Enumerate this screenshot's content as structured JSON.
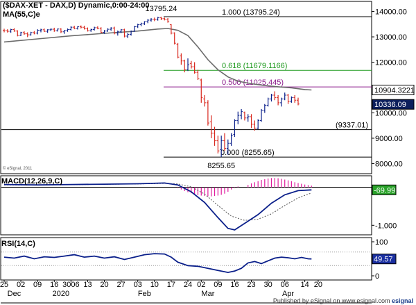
{
  "chart_data": {
    "type": "candlestick",
    "title": "($DAX-XET - DAX,D) Dynamic,0:00-24:00",
    "ma_label": "MA(55,C)e",
    "copyright": "© eSignal, 2011",
    "price_axis": {
      "min": 7600,
      "max": 14400,
      "ticks": [
        {
          "value": 14000,
          "label": "14000.00"
        },
        {
          "value": 13000,
          "label": "13000.00"
        },
        {
          "value": 12000,
          "label": "12000.00"
        },
        {
          "value": 11000,
          "label": "11000.00"
        },
        {
          "value": 10000,
          "label": "10000.00"
        },
        {
          "value": 9000,
          "label": "9000.00"
        },
        {
          "value": 8000,
          "label": "8000.00"
        }
      ]
    },
    "x_labels": [
      "25",
      "02",
      "09",
      "16",
      "3006",
      "13",
      "20",
      "27",
      "03",
      "10",
      "17",
      "24",
      "02",
      "09",
      "16",
      "23",
      "30",
      "06",
      "14",
      "20"
    ],
    "x_label_index": [
      0,
      5,
      10,
      15,
      20,
      25,
      30,
      35,
      40,
      45,
      50,
      55,
      59,
      64,
      69,
      74,
      79,
      84,
      90,
      94
    ],
    "month_labels": [
      {
        "label": "Dec",
        "index": 3
      },
      {
        "label": "2020",
        "index": 17
      },
      {
        "label": "Feb",
        "index": 42
      },
      {
        "label": "Mar",
        "index": 61
      },
      {
        "label": "Apr",
        "index": 85
      }
    ],
    "candles": [
      {
        "o": 13260,
        "h": 13320,
        "l": 13180,
        "c": 13240
      },
      {
        "o": 13240,
        "h": 13300,
        "l": 13170,
        "c": 13220
      },
      {
        "o": 13220,
        "h": 13320,
        "l": 13160,
        "c": 13290
      },
      {
        "o": 13290,
        "h": 13340,
        "l": 13200,
        "c": 13230
      },
      {
        "o": 13230,
        "h": 13260,
        "l": 13020,
        "c": 13060
      },
      {
        "o": 13060,
        "h": 13200,
        "l": 13030,
        "c": 13170
      },
      {
        "o": 13170,
        "h": 13220,
        "l": 13080,
        "c": 13120
      },
      {
        "o": 13120,
        "h": 13180,
        "l": 12990,
        "c": 13080
      },
      {
        "o": 13080,
        "h": 13200,
        "l": 13050,
        "c": 13170
      },
      {
        "o": 13170,
        "h": 13230,
        "l": 13100,
        "c": 13150
      },
      {
        "o": 13150,
        "h": 13300,
        "l": 13100,
        "c": 13260
      },
      {
        "o": 13260,
        "h": 13320,
        "l": 13180,
        "c": 13280
      },
      {
        "o": 13280,
        "h": 13330,
        "l": 13190,
        "c": 13220
      },
      {
        "o": 13220,
        "h": 13300,
        "l": 13160,
        "c": 13280
      },
      {
        "o": 13280,
        "h": 13340,
        "l": 13230,
        "c": 13300
      },
      {
        "o": 13300,
        "h": 13360,
        "l": 13200,
        "c": 13240
      },
      {
        "o": 13240,
        "h": 13330,
        "l": 13210,
        "c": 13310
      },
      {
        "o": 13310,
        "h": 13340,
        "l": 13150,
        "c": 13200
      },
      {
        "o": 13200,
        "h": 13270,
        "l": 13120,
        "c": 13250
      },
      {
        "o": 13250,
        "h": 13330,
        "l": 13200,
        "c": 13290
      },
      {
        "o": 13290,
        "h": 13420,
        "l": 13250,
        "c": 13380
      },
      {
        "o": 13380,
        "h": 13440,
        "l": 13300,
        "c": 13340
      },
      {
        "o": 13340,
        "h": 13420,
        "l": 13290,
        "c": 13400
      },
      {
        "o": 13400,
        "h": 13450,
        "l": 13330,
        "c": 13380
      },
      {
        "o": 13380,
        "h": 13440,
        "l": 13290,
        "c": 13320
      },
      {
        "o": 13320,
        "h": 13370,
        "l": 13210,
        "c": 13240
      },
      {
        "o": 13240,
        "h": 13320,
        "l": 13200,
        "c": 13290
      },
      {
        "o": 13290,
        "h": 13400,
        "l": 13250,
        "c": 13360
      },
      {
        "o": 13360,
        "h": 13420,
        "l": 13300,
        "c": 13330
      },
      {
        "o": 13330,
        "h": 13380,
        "l": 13150,
        "c": 13180
      },
      {
        "o": 13180,
        "h": 13270,
        "l": 13120,
        "c": 13230
      },
      {
        "o": 13230,
        "h": 13340,
        "l": 13200,
        "c": 13300
      },
      {
        "o": 13300,
        "h": 13380,
        "l": 13240,
        "c": 13350
      },
      {
        "o": 13350,
        "h": 13400,
        "l": 13100,
        "c": 13150
      },
      {
        "o": 13150,
        "h": 13250,
        "l": 13050,
        "c": 13200
      },
      {
        "o": 13200,
        "h": 13310,
        "l": 13150,
        "c": 13280
      },
      {
        "o": 13280,
        "h": 13320,
        "l": 12980,
        "c": 13030
      },
      {
        "o": 13030,
        "h": 13150,
        "l": 12950,
        "c": 13100
      },
      {
        "o": 13100,
        "h": 13250,
        "l": 13050,
        "c": 13220
      },
      {
        "o": 13220,
        "h": 13430,
        "l": 13200,
        "c": 13400
      },
      {
        "o": 13400,
        "h": 13520,
        "l": 13350,
        "c": 13480
      },
      {
        "o": 13480,
        "h": 13560,
        "l": 13420,
        "c": 13520
      },
      {
        "o": 13520,
        "h": 13620,
        "l": 13470,
        "c": 13600
      },
      {
        "o": 13600,
        "h": 13700,
        "l": 13540,
        "c": 13660
      },
      {
        "o": 13660,
        "h": 13740,
        "l": 13600,
        "c": 13700
      },
      {
        "o": 13700,
        "h": 13760,
        "l": 13620,
        "c": 13680
      },
      {
        "o": 13680,
        "h": 13790,
        "l": 13640,
        "c": 13760
      },
      {
        "o": 13760,
        "h": 13795,
        "l": 13660,
        "c": 13720
      },
      {
        "o": 13720,
        "h": 13760,
        "l": 13650,
        "c": 13700
      },
      {
        "o": 13700,
        "h": 13740,
        "l": 13560,
        "c": 13600
      },
      {
        "o": 13480,
        "h": 13500,
        "l": 13100,
        "c": 13150
      },
      {
        "o": 13150,
        "h": 13180,
        "l": 12700,
        "c": 12750
      },
      {
        "o": 12700,
        "h": 12760,
        "l": 12150,
        "c": 12200
      },
      {
        "o": 12250,
        "h": 12350,
        "l": 11900,
        "c": 12050
      },
      {
        "o": 12050,
        "h": 12100,
        "l": 11600,
        "c": 11700
      },
      {
        "o": 11700,
        "h": 12150,
        "l": 11650,
        "c": 11900
      },
      {
        "o": 11950,
        "h": 12050,
        "l": 11750,
        "c": 11820
      },
      {
        "o": 11820,
        "h": 12000,
        "l": 11550,
        "c": 11600
      },
      {
        "o": 11600,
        "h": 11700,
        "l": 11300,
        "c": 11350
      },
      {
        "o": 11300,
        "h": 11350,
        "l": 10400,
        "c": 10600
      },
      {
        "o": 10550,
        "h": 10700,
        "l": 10250,
        "c": 10400
      },
      {
        "o": 10400,
        "h": 10500,
        "l": 9500,
        "c": 9600
      },
      {
        "o": 9650,
        "h": 9900,
        "l": 9000,
        "c": 9200
      },
      {
        "o": 9200,
        "h": 9450,
        "l": 8700,
        "c": 8900
      },
      {
        "o": 8900,
        "h": 9100,
        "l": 8400,
        "c": 8500
      },
      {
        "o": 8550,
        "h": 9100,
        "l": 8256,
        "c": 8900
      },
      {
        "o": 8900,
        "h": 9200,
        "l": 8500,
        "c": 8600
      },
      {
        "o": 8600,
        "h": 8950,
        "l": 8350,
        "c": 8800
      },
      {
        "o": 8800,
        "h": 9200,
        "l": 8700,
        "c": 9100
      },
      {
        "o": 9150,
        "h": 9750,
        "l": 9050,
        "c": 9700
      },
      {
        "o": 9700,
        "h": 10050,
        "l": 9550,
        "c": 9900
      },
      {
        "o": 9900,
        "h": 10150,
        "l": 9750,
        "c": 10050
      },
      {
        "o": 10000,
        "h": 10050,
        "l": 9700,
        "c": 9800
      },
      {
        "o": 9800,
        "h": 9950,
        "l": 9650,
        "c": 9850
      },
      {
        "o": 9850,
        "h": 9950,
        "l": 9400,
        "c": 9550
      },
      {
        "o": 9550,
        "h": 9700,
        "l": 9300,
        "c": 9400
      },
      {
        "o": 9400,
        "h": 9750,
        "l": 9350,
        "c": 9700
      },
      {
        "o": 9700,
        "h": 10150,
        "l": 9650,
        "c": 10100
      },
      {
        "o": 10100,
        "h": 10350,
        "l": 10000,
        "c": 10300
      },
      {
        "o": 10300,
        "h": 10600,
        "l": 10250,
        "c": 10550
      },
      {
        "o": 10550,
        "h": 10750,
        "l": 10450,
        "c": 10700
      },
      {
        "o": 10700,
        "h": 10850,
        "l": 10500,
        "c": 10600
      },
      {
        "o": 10600,
        "h": 10700,
        "l": 10300,
        "c": 10400
      },
      {
        "o": 10400,
        "h": 10600,
        "l": 10250,
        "c": 10550
      },
      {
        "o": 10550,
        "h": 10800,
        "l": 10500,
        "c": 10700
      },
      {
        "o": 10700,
        "h": 10750,
        "l": 10350,
        "c": 10450
      },
      {
        "o": 10450,
        "h": 10650,
        "l": 10400,
        "c": 10600
      },
      {
        "o": 10600,
        "h": 10700,
        "l": 10400,
        "c": 10500
      },
      {
        "o": 10500,
        "h": 10600,
        "l": 10300,
        "c": 10350
      }
    ],
    "ma": {
      "name": "MA(55,C)e",
      "last_value": "10904.3221",
      "points": [
        {
          "i": 0,
          "v": 12800
        },
        {
          "i": 10,
          "v": 12920
        },
        {
          "i": 20,
          "v": 13040
        },
        {
          "i": 30,
          "v": 13140
        },
        {
          "i": 40,
          "v": 13230
        },
        {
          "i": 46,
          "v": 13310
        },
        {
          "i": 49,
          "v": 13330
        },
        {
          "i": 52,
          "v": 13260
        },
        {
          "i": 55,
          "v": 13050
        },
        {
          "i": 58,
          "v": 12600
        },
        {
          "i": 61,
          "v": 12100
        },
        {
          "i": 64,
          "v": 11700
        },
        {
          "i": 67,
          "v": 11420
        },
        {
          "i": 70,
          "v": 11250
        },
        {
          "i": 74,
          "v": 11150
        },
        {
          "i": 78,
          "v": 11080
        },
        {
          "i": 82,
          "v": 11030
        },
        {
          "i": 86,
          "v": 10990
        },
        {
          "i": 90,
          "v": 10920
        },
        {
          "i": 92,
          "v": 10904
        }
      ]
    },
    "fib_levels": [
      {
        "label": "1.000 (13795.24)",
        "value": 13795.24,
        "color": "#000000"
      },
      {
        "label": "0.618 (11679.1166)",
        "value": 11679.1166,
        "color": "#1e9a1e"
      },
      {
        "label": "0.500 (11025.445)",
        "value": 11025.445,
        "color": "#8b1a8b"
      },
      {
        "label": "0.000 (8255.65)",
        "value": 8255.65,
        "color": "#000000"
      }
    ],
    "support_level": {
      "label": "(9337.01)",
      "value": 9337.01
    },
    "annotations": [
      {
        "text": "13795.24",
        "value": 13795.24,
        "index": 47
      },
      {
        "text": "8255.65",
        "value": 8255.65,
        "index": 65
      }
    ],
    "price_tags": [
      {
        "text": "10904.3221",
        "value": 10904.3221,
        "bg": "#ffffff",
        "fg": "#000000"
      },
      {
        "text": "10336.09",
        "value": 10336.09,
        "bg": "#0c1f5c",
        "fg": "#ffffff"
      }
    ],
    "macd": {
      "label": "MACD(12,26,9,C)",
      "last_value": "-69.99",
      "axis_ticks": [
        {
          "value": -1000,
          "label": "-1,000"
        }
      ],
      "min": -1250,
      "max": 300,
      "macd_line": [
        {
          "i": 0,
          "v": 70
        },
        {
          "i": 10,
          "v": 60
        },
        {
          "i": 20,
          "v": 70
        },
        {
          "i": 30,
          "v": 80
        },
        {
          "i": 40,
          "v": 90
        },
        {
          "i": 48,
          "v": 110
        },
        {
          "i": 52,
          "v": 60
        },
        {
          "i": 56,
          "v": -120
        },
        {
          "i": 60,
          "v": -400
        },
        {
          "i": 64,
          "v": -800
        },
        {
          "i": 67,
          "v": -1080
        },
        {
          "i": 69,
          "v": -1120
        },
        {
          "i": 72,
          "v": -950
        },
        {
          "i": 76,
          "v": -720
        },
        {
          "i": 80,
          "v": -420
        },
        {
          "i": 84,
          "v": -200
        },
        {
          "i": 88,
          "v": -90
        },
        {
          "i": 92,
          "v": -70
        }
      ],
      "signal_line": [
        {
          "i": 0,
          "v": 60
        },
        {
          "i": 10,
          "v": 60
        },
        {
          "i": 20,
          "v": 65
        },
        {
          "i": 30,
          "v": 75
        },
        {
          "i": 40,
          "v": 85
        },
        {
          "i": 48,
          "v": 100
        },
        {
          "i": 52,
          "v": 85
        },
        {
          "i": 56,
          "v": 10
        },
        {
          "i": 60,
          "v": -180
        },
        {
          "i": 64,
          "v": -480
        },
        {
          "i": 68,
          "v": -760
        },
        {
          "i": 72,
          "v": -870
        },
        {
          "i": 76,
          "v": -840
        },
        {
          "i": 80,
          "v": -700
        },
        {
          "i": 84,
          "v": -480
        },
        {
          "i": 88,
          "v": -280
        },
        {
          "i": 92,
          "v": -150
        }
      ],
      "histogram": [
        {
          "i": 52,
          "v": -20
        },
        {
          "i": 53,
          "v": -60
        },
        {
          "i": 54,
          "v": -100
        },
        {
          "i": 55,
          "v": -130
        },
        {
          "i": 56,
          "v": -160
        },
        {
          "i": 57,
          "v": -190
        },
        {
          "i": 58,
          "v": -210
        },
        {
          "i": 59,
          "v": -220
        },
        {
          "i": 60,
          "v": -230
        },
        {
          "i": 61,
          "v": -240
        },
        {
          "i": 62,
          "v": -240
        },
        {
          "i": 63,
          "v": -230
        },
        {
          "i": 64,
          "v": -220
        },
        {
          "i": 65,
          "v": -200
        },
        {
          "i": 66,
          "v": -170
        },
        {
          "i": 67,
          "v": -120
        },
        {
          "i": 68,
          "v": -60
        },
        {
          "i": 69,
          "v": -20
        },
        {
          "i": 70,
          "v": 20
        },
        {
          "i": 73,
          "v": 60
        },
        {
          "i": 74,
          "v": 100
        },
        {
          "i": 75,
          "v": 130
        },
        {
          "i": 76,
          "v": 160
        },
        {
          "i": 77,
          "v": 190
        },
        {
          "i": 78,
          "v": 210
        },
        {
          "i": 79,
          "v": 230
        },
        {
          "i": 80,
          "v": 240
        },
        {
          "i": 81,
          "v": 240
        },
        {
          "i": 82,
          "v": 235
        },
        {
          "i": 83,
          "v": 220
        },
        {
          "i": 84,
          "v": 200
        },
        {
          "i": 85,
          "v": 180
        },
        {
          "i": 86,
          "v": 160
        },
        {
          "i": 87,
          "v": 130
        },
        {
          "i": 88,
          "v": 110
        },
        {
          "i": 89,
          "v": 90
        },
        {
          "i": 90,
          "v": 70
        },
        {
          "i": 91,
          "v": 55
        },
        {
          "i": 92,
          "v": 40
        }
      ]
    },
    "rsi": {
      "label": "RSI(14,C)",
      "last_value": "49.57",
      "min": 0,
      "max": 100,
      "axis_ticks": [
        {
          "value": 100,
          "label": "100"
        },
        {
          "value": 0,
          "label": "0"
        }
      ],
      "reference_lines": [
        70,
        30
      ],
      "points": [
        {
          "i": 0,
          "v": 55
        },
        {
          "i": 3,
          "v": 52
        },
        {
          "i": 6,
          "v": 58
        },
        {
          "i": 9,
          "v": 50
        },
        {
          "i": 12,
          "v": 56
        },
        {
          "i": 15,
          "v": 54
        },
        {
          "i": 18,
          "v": 58
        },
        {
          "i": 21,
          "v": 62
        },
        {
          "i": 24,
          "v": 55
        },
        {
          "i": 27,
          "v": 58
        },
        {
          "i": 30,
          "v": 52
        },
        {
          "i": 33,
          "v": 56
        },
        {
          "i": 36,
          "v": 48
        },
        {
          "i": 39,
          "v": 55
        },
        {
          "i": 42,
          "v": 62
        },
        {
          "i": 45,
          "v": 65
        },
        {
          "i": 48,
          "v": 64
        },
        {
          "i": 50,
          "v": 55
        },
        {
          "i": 52,
          "v": 40
        },
        {
          "i": 55,
          "v": 30
        },
        {
          "i": 58,
          "v": 28
        },
        {
          "i": 61,
          "v": 22
        },
        {
          "i": 64,
          "v": 16
        },
        {
          "i": 67,
          "v": 10
        },
        {
          "i": 69,
          "v": 14
        },
        {
          "i": 71,
          "v": 22
        },
        {
          "i": 73,
          "v": 38
        },
        {
          "i": 75,
          "v": 42
        },
        {
          "i": 77,
          "v": 36
        },
        {
          "i": 79,
          "v": 44
        },
        {
          "i": 81,
          "v": 52
        },
        {
          "i": 83,
          "v": 55
        },
        {
          "i": 85,
          "v": 53
        },
        {
          "i": 87,
          "v": 50
        },
        {
          "i": 89,
          "v": 54
        },
        {
          "i": 91,
          "v": 50
        },
        {
          "i": 92,
          "v": 49.57
        }
      ]
    },
    "colors": {
      "up": "#0a1f8a",
      "down": "#d8261c",
      "ma": "#6b6b6b",
      "macd_line": "#0a1f8a",
      "signal_line": "#555555",
      "histogram": "#e0189c",
      "rsi_line": "#0a1f8a"
    }
  },
  "footer": {
    "text": "Published by eSignal on www.esignal.com",
    "brand": "esignal"
  }
}
